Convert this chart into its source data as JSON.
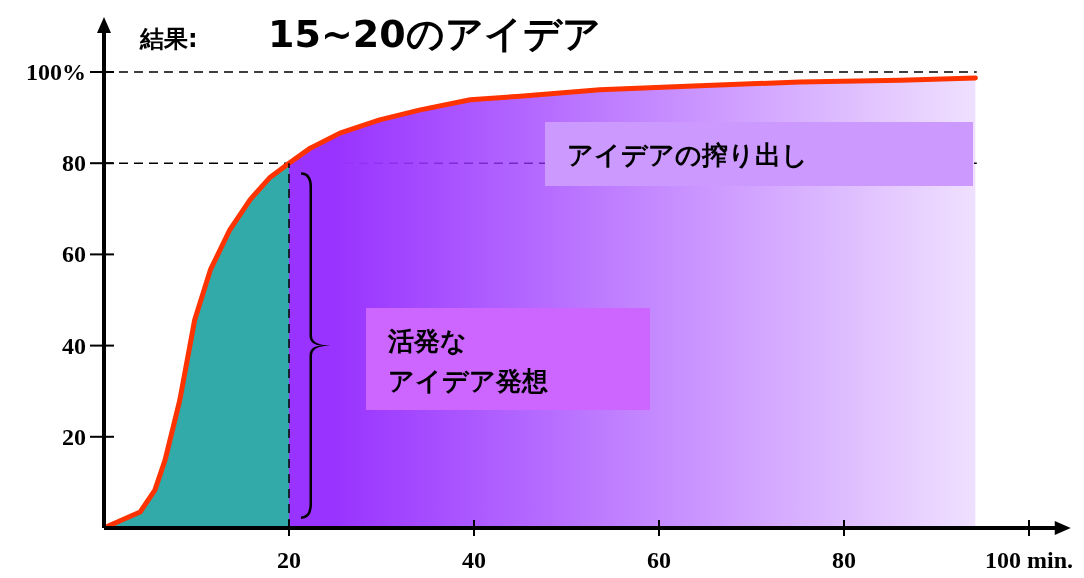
{
  "chart_data": {
    "type": "line",
    "title": "結果:",
    "subtitle": "15~20のアイデア",
    "xlim": [
      0,
      103
    ],
    "ylim": [
      0,
      109
    ],
    "xticks": [
      20,
      40,
      60,
      80,
      {
        "value": 100,
        "label": "100 min."
      }
    ],
    "yticks": [
      20,
      40,
      60,
      80,
      {
        "value": 100,
        "label": "100%"
      }
    ],
    "grid": false,
    "marker": "none",
    "series": [
      {
        "type": "area",
        "color": "#33aaaa",
        "x": [
          0,
          0.4,
          3.9,
          5.5,
          6.6,
          8.2,
          9.8,
          11.5,
          13.6,
          15.8,
          17.9,
          20
        ],
        "values": [
          0,
          0.4,
          3.5,
          8.3,
          14.9,
          28.1,
          45.6,
          56.6,
          65.4,
          72.0,
          76.8,
          80
        ]
      },
      {
        "type": "area",
        "color": "#9933ff",
        "x": [
          20,
          22.3,
          25.5,
          29.8,
          34.2,
          39.6,
          45.0,
          53.6,
          64.4,
          75.2,
          86.1,
          94.2
        ],
        "values": [
          80,
          83.3,
          86.6,
          89.5,
          91.7,
          93.9,
          94.7,
          96.1,
          97.0,
          97.8,
          98.2,
          98.7
        ]
      },
      {
        "color": "#ff3300",
        "line_style": "solid",
        "x": [
          0.4,
          3.9,
          5.5,
          6.6,
          8.2,
          9.8,
          11.5,
          13.6,
          15.8,
          17.9,
          20,
          22.3,
          25.5,
          29.8,
          34.2,
          39.6,
          45.0,
          53.6,
          64.4,
          75.2,
          86.1,
          94.2
        ],
        "values": [
          0.4,
          3.5,
          8.3,
          14.9,
          28.1,
          45.6,
          56.6,
          65.4,
          72.0,
          76.8,
          80,
          83.3,
          86.6,
          89.5,
          91.7,
          93.9,
          94.7,
          96.1,
          97.0,
          97.8,
          98.2,
          98.7
        ]
      }
    ],
    "ref_lines": [
      {
        "axis": "y",
        "value": 100,
        "line_style": "dashed",
        "color": "#000000"
      },
      {
        "axis": "y",
        "value": 80,
        "line_style": "dashed",
        "color": "#000000"
      },
      {
        "axis": "x",
        "value": 20,
        "line_style": "dashed",
        "color": "#000000"
      }
    ],
    "annotations": [
      "アイデアの搾り出し",
      "活発な",
      "アイデア発想"
    ]
  }
}
